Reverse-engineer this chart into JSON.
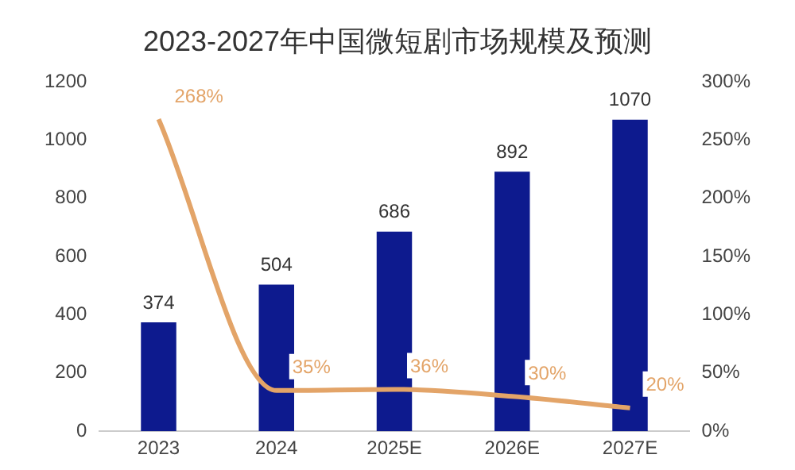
{
  "chart_data": {
    "type": "bar",
    "title": "2023-2027年中国微短剧市场规模及预测",
    "categories": [
      "2023",
      "2024",
      "2025E",
      "2026E",
      "2027E"
    ],
    "series": [
      {
        "color": "#0d1a8e",
        "values": [
          374,
          504,
          686,
          892,
          1070
        ],
        "value_labels": [
          "374",
          "504",
          "686",
          "892",
          "1070"
        ]
      },
      {
        "type": "line",
        "axis": "y2",
        "color": "#e3a468",
        "values": [
          268,
          35,
          36,
          30,
          20
        ],
        "value_labels": [
          "268%",
          "35%",
          "36%",
          "30%",
          "20%"
        ]
      }
    ],
    "ylim": [
      0,
      1200
    ],
    "yticks": [
      0,
      200,
      400,
      600,
      800,
      1000,
      1200
    ],
    "y2lim": [
      0,
      300
    ],
    "y2ticks": [
      {
        "value": 0,
        "label": "0%"
      },
      {
        "value": 50,
        "label": "50%"
      },
      {
        "value": 100,
        "label": "100%"
      },
      {
        "value": 150,
        "label": "150%"
      },
      {
        "value": 200,
        "label": "200%"
      },
      {
        "value": 250,
        "label": "250%"
      },
      {
        "value": 300,
        "label": "300%"
      }
    ],
    "grid": false,
    "legend": false,
    "marker": "none",
    "line_style": "solid"
  }
}
